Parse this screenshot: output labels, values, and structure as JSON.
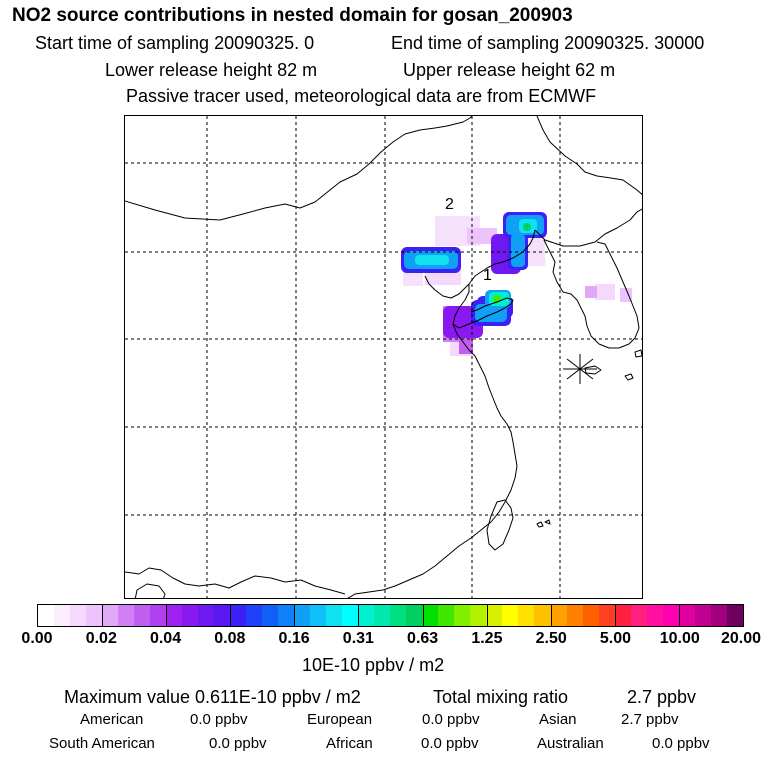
{
  "header": {
    "title": "NO2 source contributions in nested domain for gosan_200903",
    "line2_start": "Start time of sampling 20090325.    0",
    "line2_end": "End time of sampling 20090325. 30000",
    "line3_lower": "Lower release height  82 m",
    "line3_upper": "Upper release height  62 m",
    "line4": "Passive tracer used, meteorological data are from ECMWF"
  },
  "map": {
    "labels": {
      "site1": "1",
      "site2": "2"
    },
    "colors": {
      "coast": "#000000",
      "grid": "#000000"
    }
  },
  "colorbar": {
    "colors": [
      "#ffffff",
      "#fbeefe",
      "#f4d9fd",
      "#ecc3fb",
      "#e2a8f8",
      "#d080f4",
      "#c05ef0",
      "#b040ee",
      "#a020f0",
      "#8a18f0",
      "#7018f0",
      "#5a18f0",
      "#3c20f5",
      "#1e40f8",
      "#1060f8",
      "#1080f8",
      "#10a0f8",
      "#10c0f8",
      "#10e0f0",
      "#00ffff",
      "#00f0d0",
      "#00e8b0",
      "#00e080",
      "#00d060",
      "#00e000",
      "#40e800",
      "#80f000",
      "#b0f000",
      "#d8f000",
      "#ffff00",
      "#ffe000",
      "#ffc000",
      "#ffa000",
      "#ff8000",
      "#ff6000",
      "#ff4020",
      "#ff2040",
      "#ff2080",
      "#ff10a0",
      "#ff00b0",
      "#e000a0",
      "#c00090",
      "#a00080",
      "#700060"
    ],
    "tick_labels": [
      "0.00",
      "0.02",
      "0.04",
      "0.08",
      "0.16",
      "0.31",
      "0.63",
      "1.25",
      "2.50",
      "5.00",
      "10.00",
      "20.00"
    ],
    "units": "10E-10 ppbv / m2"
  },
  "stats": {
    "maximum": "Maximum value  0.611E-10 ppbv / m2",
    "total_label": "Total mixing ratio",
    "total_value": "2.7 ppbv",
    "american_label": "American",
    "american_value": "0.0 ppbv",
    "european_label": "European",
    "european_value": "0.0 ppbv",
    "asian_label": "Asian",
    "asian_value": "2.7 ppbv",
    "south_american_label": "South American",
    "south_american_value": "0.0 ppbv",
    "african_label": "African",
    "african_value": "0.0 ppbv",
    "australian_label": "Australian",
    "australian_value": "0.0 ppbv"
  }
}
